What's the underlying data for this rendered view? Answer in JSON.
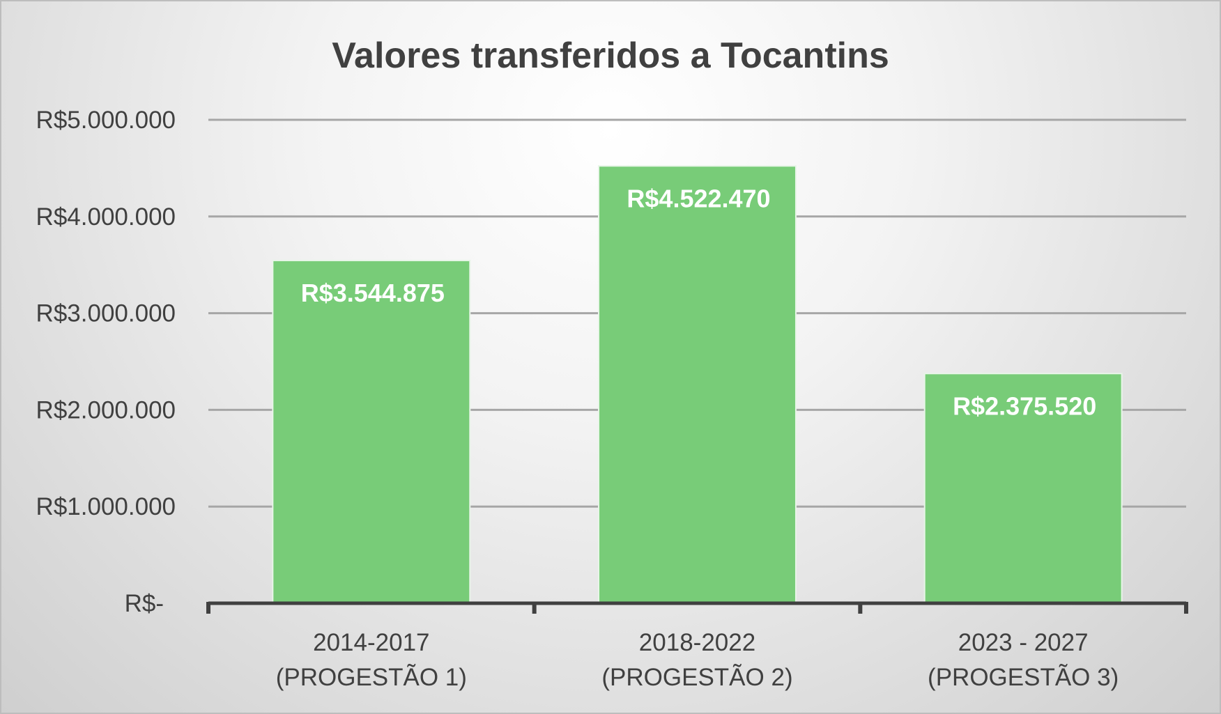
{
  "chart_data": {
    "type": "bar",
    "title": "Valores transferidos a Tocantins",
    "xlabel": "",
    "ylabel": "",
    "categories": [
      [
        "2014-2017",
        "(PROGESTÃO 1)"
      ],
      [
        "2018-2022",
        "(PROGESTÃO 2)"
      ],
      [
        "2023 - 2027",
        "(PROGESTÃO 3)"
      ]
    ],
    "values": [
      3544875,
      4522470,
      2375520
    ],
    "data_labels": [
      "R$3.544.875",
      "R$4.522.470",
      "R$2.375.520"
    ],
    "ylim": [
      0,
      5000000
    ],
    "yticks": [
      0,
      1000000,
      2000000,
      3000000,
      4000000,
      5000000
    ],
    "ytick_labels": [
      "R$-",
      "R$1.000.000",
      "R$2.000.000",
      "R$3.000.000",
      "R$4.000.000",
      "R$5.000.000"
    ],
    "grid": true,
    "legend": "none",
    "colors": {
      "bar": "#78cc78",
      "bar_edge": "#e8f5e8",
      "gridline": "#a6a6a6",
      "axis": "#404040",
      "text": "#404040",
      "label": "#ffffff"
    }
  }
}
